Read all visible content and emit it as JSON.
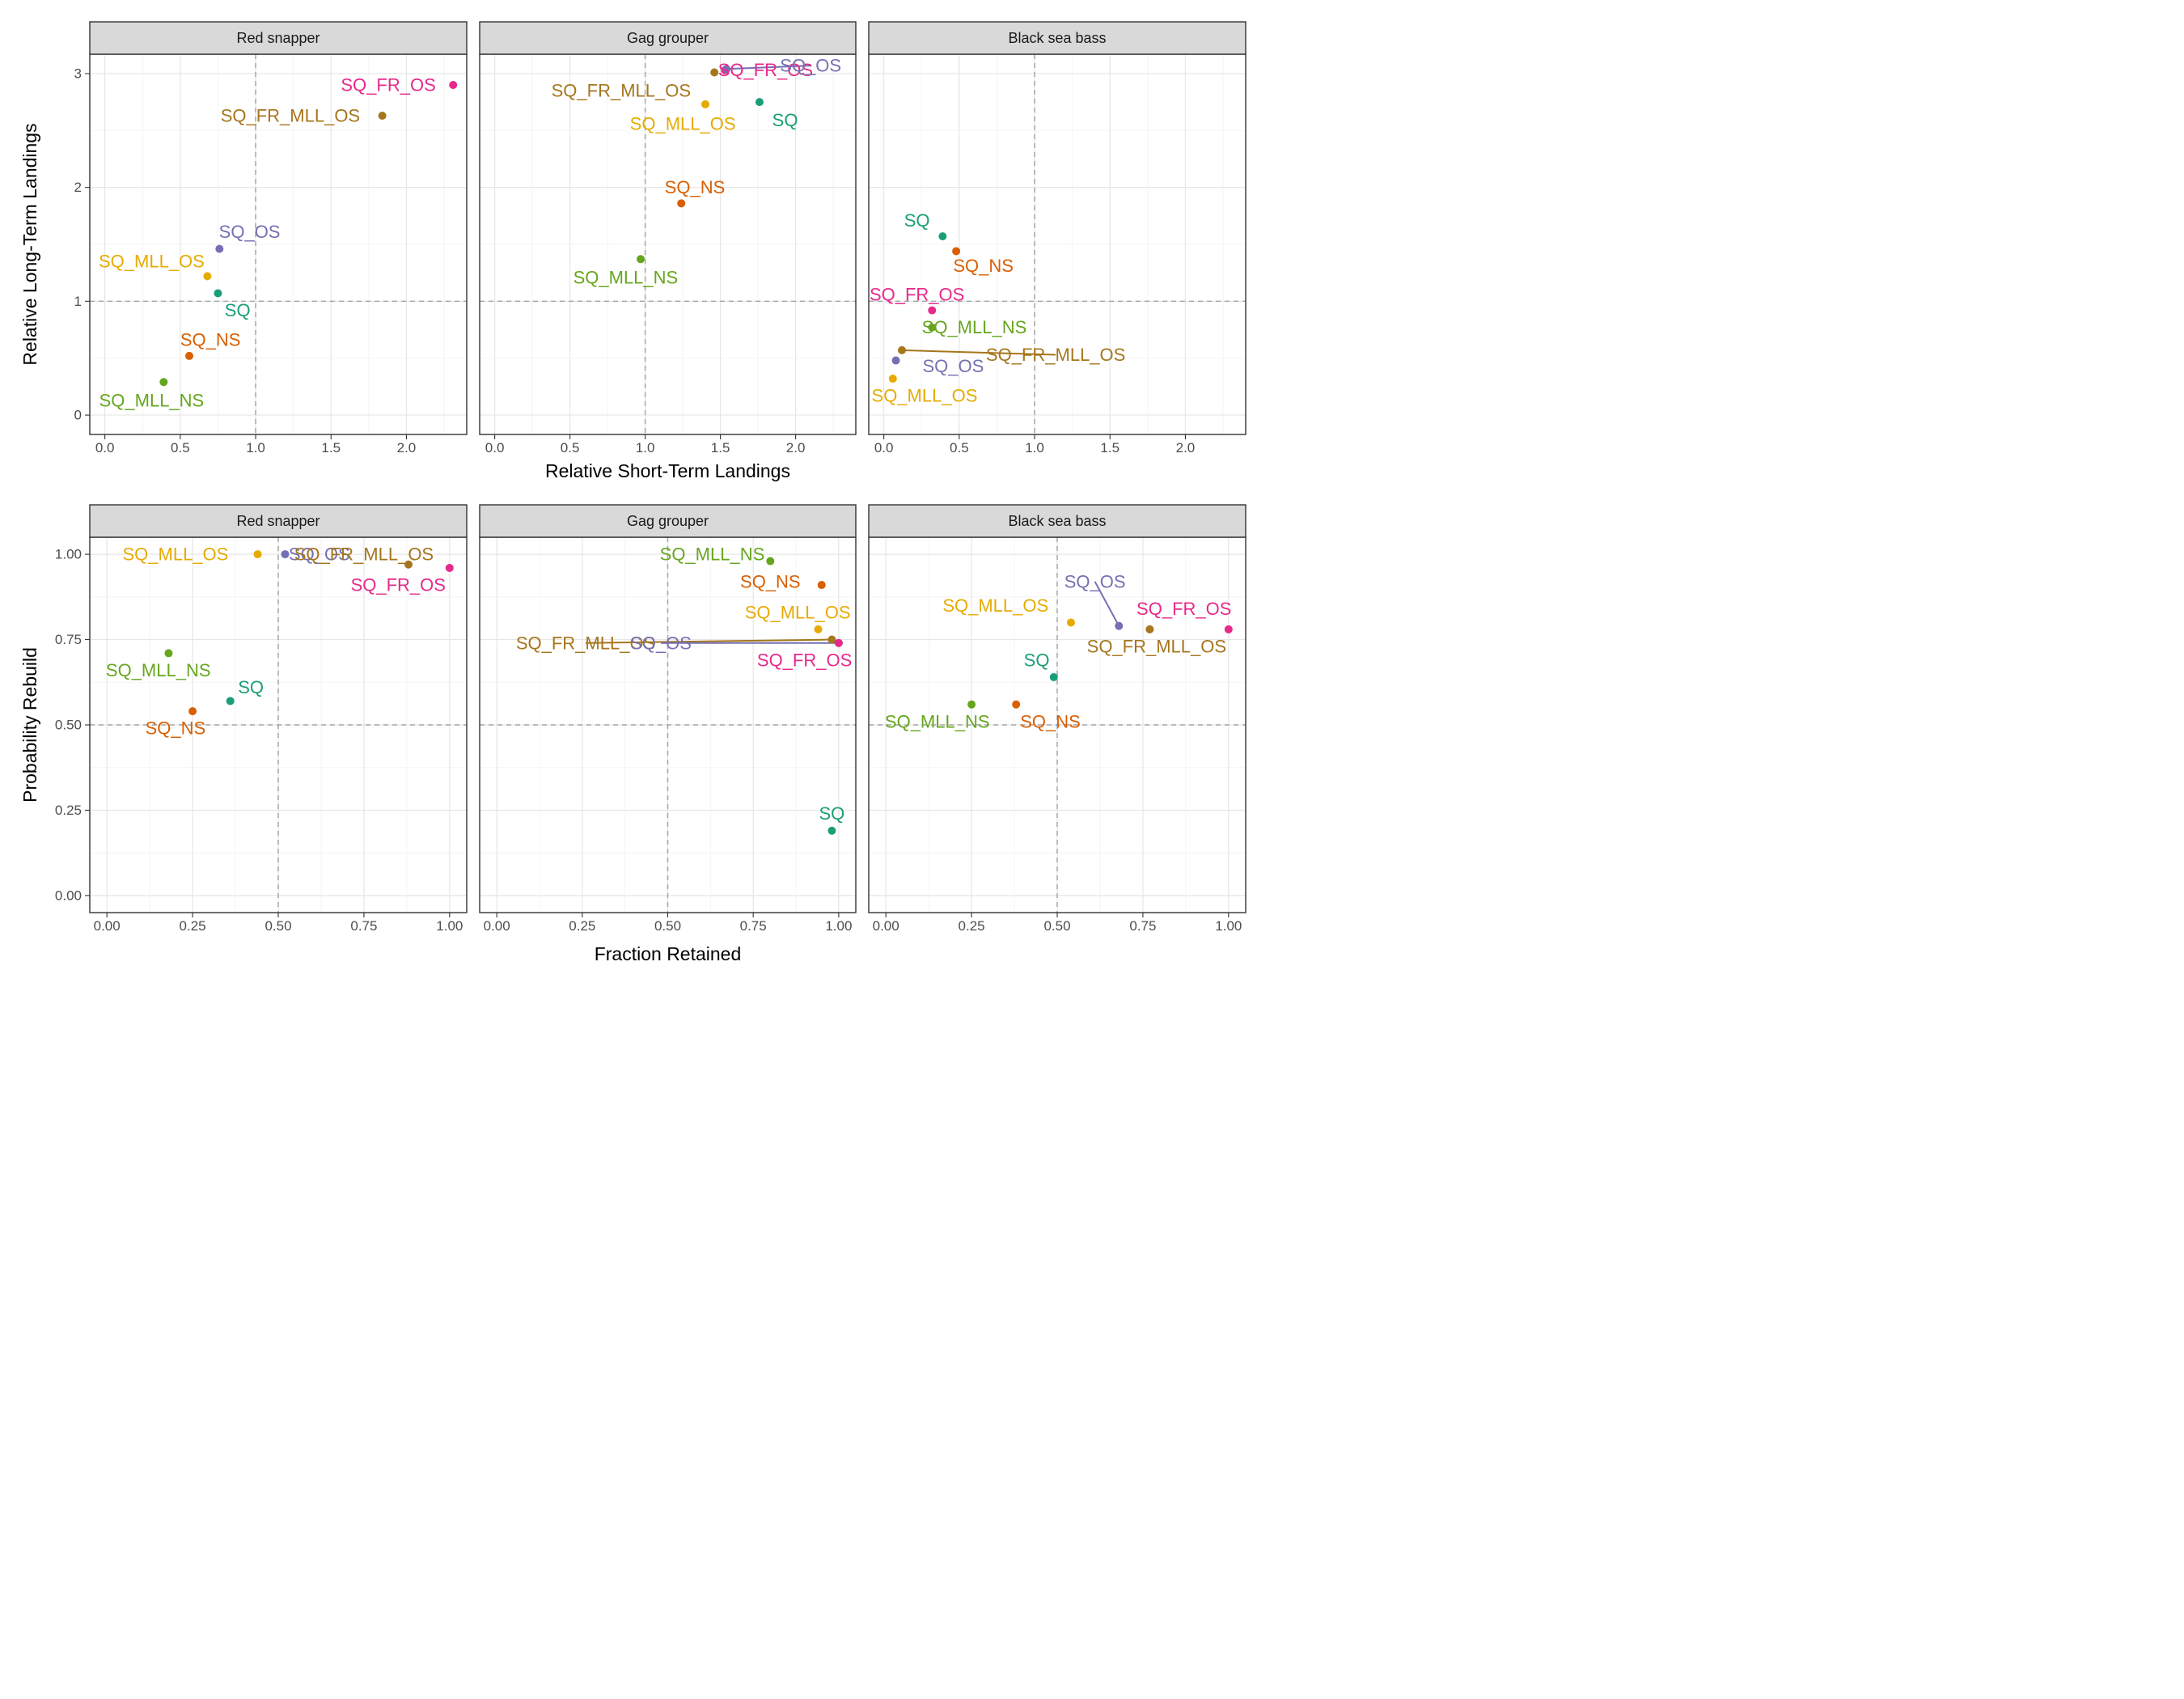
{
  "colors": {
    "SQ": "#1b9e77",
    "SQ_NS": "#d95f02",
    "SQ_OS": "#7570b3",
    "SQ_FR_OS": "#e7298a",
    "SQ_MLL_NS": "#66a61e",
    "SQ_MLL_OS": "#e6ab02",
    "SQ_FR_MLL_OS": "#a6761d"
  },
  "chart_data": [
    {
      "type": "scatter",
      "row": "top",
      "xlabel": "Relative Short-Term Landings",
      "ylabel": "Relative Long-Term Landings",
      "xlim": [
        -0.1,
        2.4
      ],
      "ylim": [
        -0.17,
        3.17
      ],
      "x_ticks": [
        0,
        0.5,
        1,
        1.5,
        2
      ],
      "x_tick_labels": [
        "0.0",
        "0.5",
        "1.0",
        "1.5",
        "2.0"
      ],
      "y_ticks": [
        0,
        1,
        2,
        3
      ],
      "y_tick_labels": [
        "0",
        "1",
        "2",
        "3"
      ],
      "ref_x": 1,
      "ref_y": 1,
      "grid": true,
      "facets": [
        {
          "label": "Red snapper",
          "points": [
            {
              "name": "SQ_FR_OS",
              "x": 2.31,
              "y": 2.9,
              "label_x": 1.88,
              "label_y": 2.9
            },
            {
              "name": "SQ_FR_MLL_OS",
              "x": 1.84,
              "y": 2.63,
              "label_x": 1.23,
              "label_y": 2.63
            },
            {
              "name": "SQ_OS",
              "x": 0.76,
              "y": 1.46,
              "label_x": 0.96,
              "label_y": 1.61
            },
            {
              "name": "SQ_MLL_OS",
              "x": 0.68,
              "y": 1.22,
              "label_x": 0.31,
              "label_y": 1.35
            },
            {
              "name": "SQ",
              "x": 0.75,
              "y": 1.07,
              "label_x": 0.88,
              "label_y": 0.92
            },
            {
              "name": "SQ_NS",
              "x": 0.56,
              "y": 0.52,
              "label_x": 0.7,
              "label_y": 0.66
            },
            {
              "name": "SQ_MLL_NS",
              "x": 0.39,
              "y": 0.29,
              "label_x": 0.31,
              "label_y": 0.13
            }
          ]
        },
        {
          "label": "Gag grouper",
          "points": [
            {
              "name": "SQ_FR_OS",
              "x": 1.53,
              "y": 3.03,
              "label_x": 1.8,
              "label_y": 3.03
            },
            {
              "name": "SQ_OS",
              "x": 1.54,
              "y": 3.04,
              "label_x": 2.1,
              "label_y": 3.07,
              "line": true
            },
            {
              "name": "SQ_FR_MLL_OS",
              "x": 1.46,
              "y": 3.01,
              "label_x": 0.84,
              "label_y": 2.85
            },
            {
              "name": "SQ_MLL_OS",
              "x": 1.4,
              "y": 2.73,
              "label_x": 1.25,
              "label_y": 2.56
            },
            {
              "name": "SQ",
              "x": 1.76,
              "y": 2.75,
              "label_x": 1.93,
              "label_y": 2.59
            },
            {
              "name": "SQ_NS",
              "x": 1.24,
              "y": 1.86,
              "label_x": 1.33,
              "label_y": 2.0
            },
            {
              "name": "SQ_MLL_NS",
              "x": 0.97,
              "y": 1.37,
              "label_x": 0.87,
              "label_y": 1.21
            }
          ]
        },
        {
          "label": "Black sea bass",
          "points": [
            {
              "name": "SQ",
              "x": 0.39,
              "y": 1.57,
              "label_x": 0.22,
              "label_y": 1.71
            },
            {
              "name": "SQ_NS",
              "x": 0.48,
              "y": 1.44,
              "label_x": 0.66,
              "label_y": 1.31
            },
            {
              "name": "SQ_FR_OS",
              "x": 0.32,
              "y": 0.92,
              "label_x": 0.22,
              "label_y": 1.06
            },
            {
              "name": "SQ_MLL_NS",
              "x": 0.32,
              "y": 0.77,
              "label_x": 0.6,
              "label_y": 0.77
            },
            {
              "name": "SQ_FR_MLL_OS",
              "x": 0.12,
              "y": 0.57,
              "label_x": 1.14,
              "label_y": 0.53,
              "line": true
            },
            {
              "name": "SQ_OS",
              "x": 0.08,
              "y": 0.48,
              "label_x": 0.46,
              "label_y": 0.43
            },
            {
              "name": "SQ_MLL_OS",
              "x": 0.06,
              "y": 0.32,
              "label_x": 0.27,
              "label_y": 0.17
            }
          ]
        }
      ]
    },
    {
      "type": "scatter",
      "row": "bottom",
      "xlabel": "Fraction Retained",
      "ylabel": "Probability Rebuild",
      "xlim": [
        -0.05,
        1.05
      ],
      "ylim": [
        -0.05,
        1.05
      ],
      "x_ticks": [
        0,
        0.25,
        0.5,
        0.75,
        1
      ],
      "x_tick_labels": [
        "0.00",
        "0.25",
        "0.50",
        "0.75",
        "1.00"
      ],
      "y_ticks": [
        0,
        0.25,
        0.5,
        0.75,
        1
      ],
      "y_tick_labels": [
        "0.00",
        "0.25",
        "0.50",
        "0.75",
        "1.00"
      ],
      "ref_x": 0.5,
      "ref_y": 0.5,
      "grid": true,
      "facets": [
        {
          "label": "Red snapper",
          "points": [
            {
              "name": "SQ_MLL_OS",
              "x": 0.44,
              "y": 1.0,
              "label_x": 0.2,
              "label_y": 1.0
            },
            {
              "name": "SQ_OS",
              "x": 0.52,
              "y": 1.0,
              "label_x": 0.62,
              "label_y": 1.0
            },
            {
              "name": "SQ_FR_MLL_OS",
              "x": 0.88,
              "y": 0.97,
              "label_x": 0.75,
              "label_y": 1.0
            },
            {
              "name": "SQ_FR_OS",
              "x": 1.0,
              "y": 0.96,
              "label_x": 0.85,
              "label_y": 0.91
            },
            {
              "name": "SQ_MLL_NS",
              "x": 0.18,
              "y": 0.71,
              "label_x": 0.15,
              "label_y": 0.66
            },
            {
              "name": "SQ",
              "x": 0.36,
              "y": 0.57,
              "label_x": 0.42,
              "label_y": 0.61
            },
            {
              "name": "SQ_NS",
              "x": 0.25,
              "y": 0.54,
              "label_x": 0.2,
              "label_y": 0.49
            }
          ]
        },
        {
          "label": "Gag grouper",
          "points": [
            {
              "name": "SQ_MLL_NS",
              "x": 0.8,
              "y": 0.98,
              "label_x": 0.63,
              "label_y": 1.0
            },
            {
              "name": "SQ_NS",
              "x": 0.95,
              "y": 0.91,
              "label_x": 0.8,
              "label_y": 0.92
            },
            {
              "name": "SQ_MLL_OS",
              "x": 0.94,
              "y": 0.78,
              "label_x": 0.88,
              "label_y": 0.83
            },
            {
              "name": "SQ_FR_MLL_OS",
              "x": 0.98,
              "y": 0.75,
              "label_x": 0.26,
              "label_y": 0.74,
              "line": true
            },
            {
              "name": "SQ_OS",
              "x": 1.0,
              "y": 0.74,
              "label_x": 0.48,
              "label_y": 0.74,
              "line": true
            },
            {
              "name": "SQ_FR_OS",
              "x": 1.0,
              "y": 0.74,
              "label_x": 0.9,
              "label_y": 0.69
            },
            {
              "name": "SQ",
              "x": 0.98,
              "y": 0.19,
              "label_x": 0.98,
              "label_y": 0.24
            }
          ]
        },
        {
          "label": "Black sea bass",
          "points": [
            {
              "name": "SQ_OS",
              "x": 0.68,
              "y": 0.79,
              "label_x": 0.61,
              "label_y": 0.92,
              "line": true
            },
            {
              "name": "SQ_FR_OS",
              "x": 1.0,
              "y": 0.78,
              "label_x": 0.87,
              "label_y": 0.84
            },
            {
              "name": "SQ_FR_MLL_OS",
              "x": 0.77,
              "y": 0.78,
              "label_x": 0.79,
              "label_y": 0.73
            },
            {
              "name": "SQ_MLL_OS",
              "x": 0.54,
              "y": 0.8,
              "label_x": 0.32,
              "label_y": 0.85
            },
            {
              "name": "SQ",
              "x": 0.49,
              "y": 0.64,
              "label_x": 0.44,
              "label_y": 0.69
            },
            {
              "name": "SQ_MLL_NS",
              "x": 0.25,
              "y": 0.56,
              "label_x": 0.15,
              "label_y": 0.51
            },
            {
              "name": "SQ_NS",
              "x": 0.38,
              "y": 0.56,
              "label_x": 0.48,
              "label_y": 0.51
            }
          ]
        }
      ]
    }
  ]
}
